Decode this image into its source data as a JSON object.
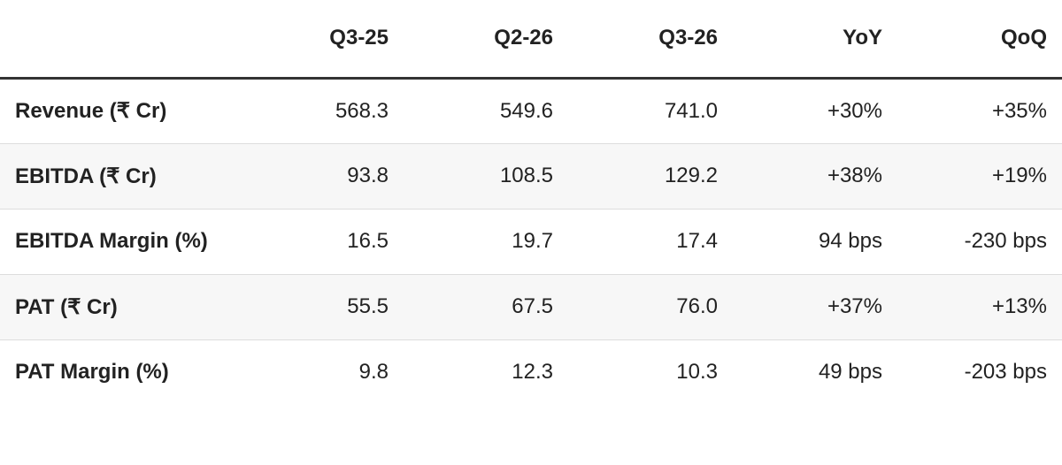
{
  "table": {
    "columns": [
      "Q3-25",
      "Q2-26",
      "Q3-26",
      "YoY",
      "QoQ"
    ],
    "rows": [
      [
        "Revenue (₹ Cr)",
        "568.3",
        "549.6",
        "741.0",
        "+30%",
        "+35%"
      ],
      [
        "EBITDA (₹ Cr)",
        "93.8",
        "108.5",
        "129.2",
        "+38%",
        "+19%"
      ],
      [
        "EBITDA Margin (%)",
        "16.5",
        "19.7",
        "17.4",
        "94 bps",
        "-230 bps"
      ],
      [
        "PAT (₹ Cr)",
        "55.5",
        "67.5",
        "76.0",
        "+37%",
        "+13%"
      ],
      [
        "PAT Margin (%)",
        "9.8",
        "12.3",
        "10.3",
        "49 bps",
        "-203 bps"
      ]
    ]
  }
}
